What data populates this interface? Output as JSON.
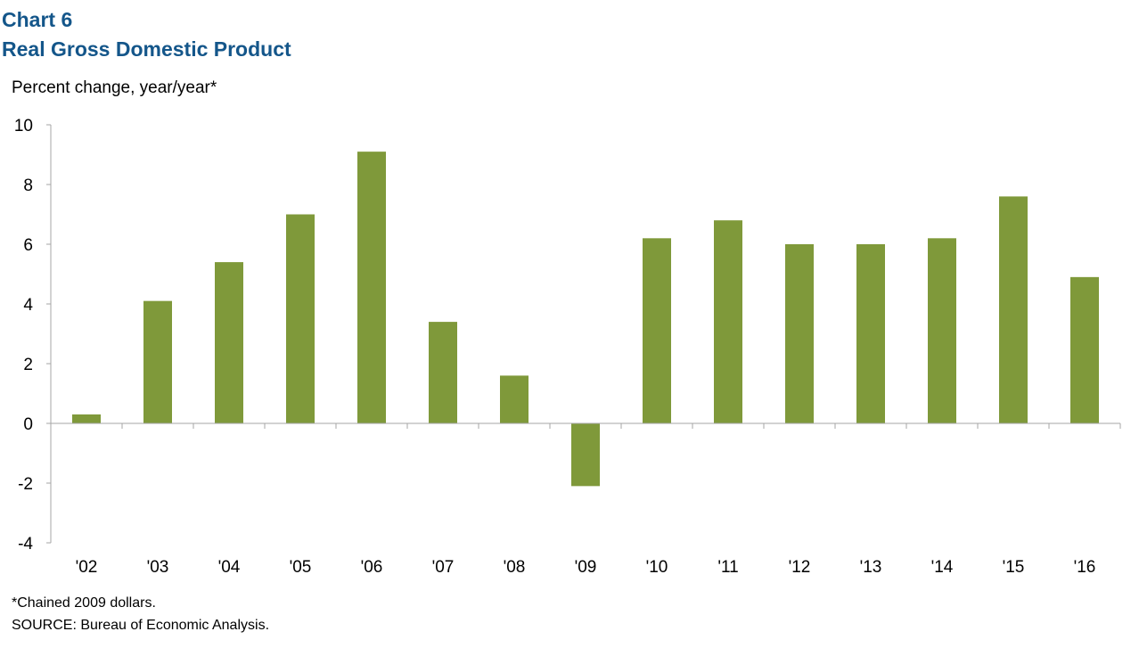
{
  "header": {
    "chart_label": "Chart 6",
    "title": "Real Gross Domestic Product"
  },
  "footer": {
    "note": "*Chained 2009 dollars.",
    "source": "SOURCE: Bureau of Economic Analysis."
  },
  "colors": {
    "bar": "#7f993a",
    "axis": "#a6a6a6",
    "title": "#14568a"
  },
  "chart_data": {
    "type": "bar",
    "title": "Real Gross Domestic Product",
    "ylabel": "Percent change, year/year*",
    "xlabel": "",
    "categories": [
      "'02",
      "'03",
      "'04",
      "'05",
      "'06",
      "'07",
      "'08",
      "'09",
      "'10",
      "'11",
      "'12",
      "'13",
      "'14",
      "'15",
      "'16"
    ],
    "values": [
      0.3,
      4.1,
      5.4,
      7.0,
      9.1,
      3.4,
      1.6,
      -2.1,
      6.2,
      6.8,
      6.0,
      6.0,
      6.2,
      7.6,
      4.9
    ],
    "ylim": [
      -4,
      10
    ],
    "yticks": [
      "10",
      "8",
      "6",
      "4",
      "2",
      "0",
      "-2",
      "-4"
    ],
    "grid": false,
    "legend": "none"
  }
}
